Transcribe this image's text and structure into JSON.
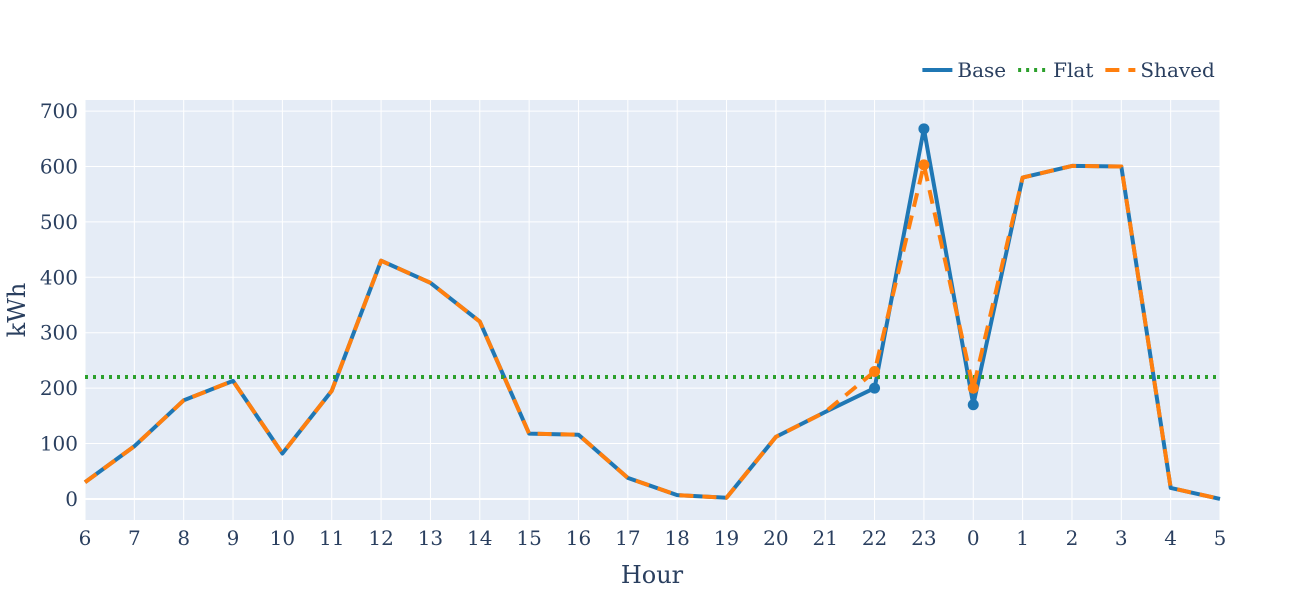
{
  "chart_data": {
    "type": "line",
    "title": "",
    "xlabel": "Hour",
    "ylabel": "kWh",
    "categories": [
      "6",
      "7",
      "8",
      "9",
      "10",
      "11",
      "12",
      "13",
      "14",
      "15",
      "16",
      "17",
      "18",
      "19",
      "20",
      "21",
      "22",
      "23",
      "0",
      "1",
      "2",
      "3",
      "4",
      "5"
    ],
    "ylim": [
      -38,
      720
    ],
    "yticks": [
      0,
      100,
      200,
      300,
      400,
      500,
      600,
      700
    ],
    "grid": true,
    "legend_position": "top-right",
    "series": [
      {
        "name": "Base",
        "color": "#1f77b4",
        "style": "solid",
        "values": [
          30,
          95,
          178,
          213,
          82,
          195,
          430,
          390,
          320,
          118,
          116,
          38,
          7,
          2,
          112,
          157,
          200,
          668,
          170,
          580,
          601,
          600,
          20,
          0
        ],
        "marked_points": [
          16,
          17,
          18
        ]
      },
      {
        "name": "Flat",
        "color": "#2ca02c",
        "style": "dotted",
        "values": [
          220,
          220,
          220,
          220,
          220,
          220,
          220,
          220,
          220,
          220,
          220,
          220,
          220,
          220,
          220,
          220,
          220,
          220,
          220,
          220,
          220,
          220,
          220,
          220
        ]
      },
      {
        "name": "Shaved",
        "color": "#ff7f0e",
        "style": "dashed",
        "values": [
          30,
          95,
          178,
          213,
          82,
          195,
          430,
          390,
          320,
          118,
          116,
          38,
          7,
          2,
          112,
          157,
          230,
          603,
          200,
          580,
          601,
          600,
          20,
          0
        ],
        "marked_points": [
          16,
          17,
          18
        ]
      }
    ]
  }
}
